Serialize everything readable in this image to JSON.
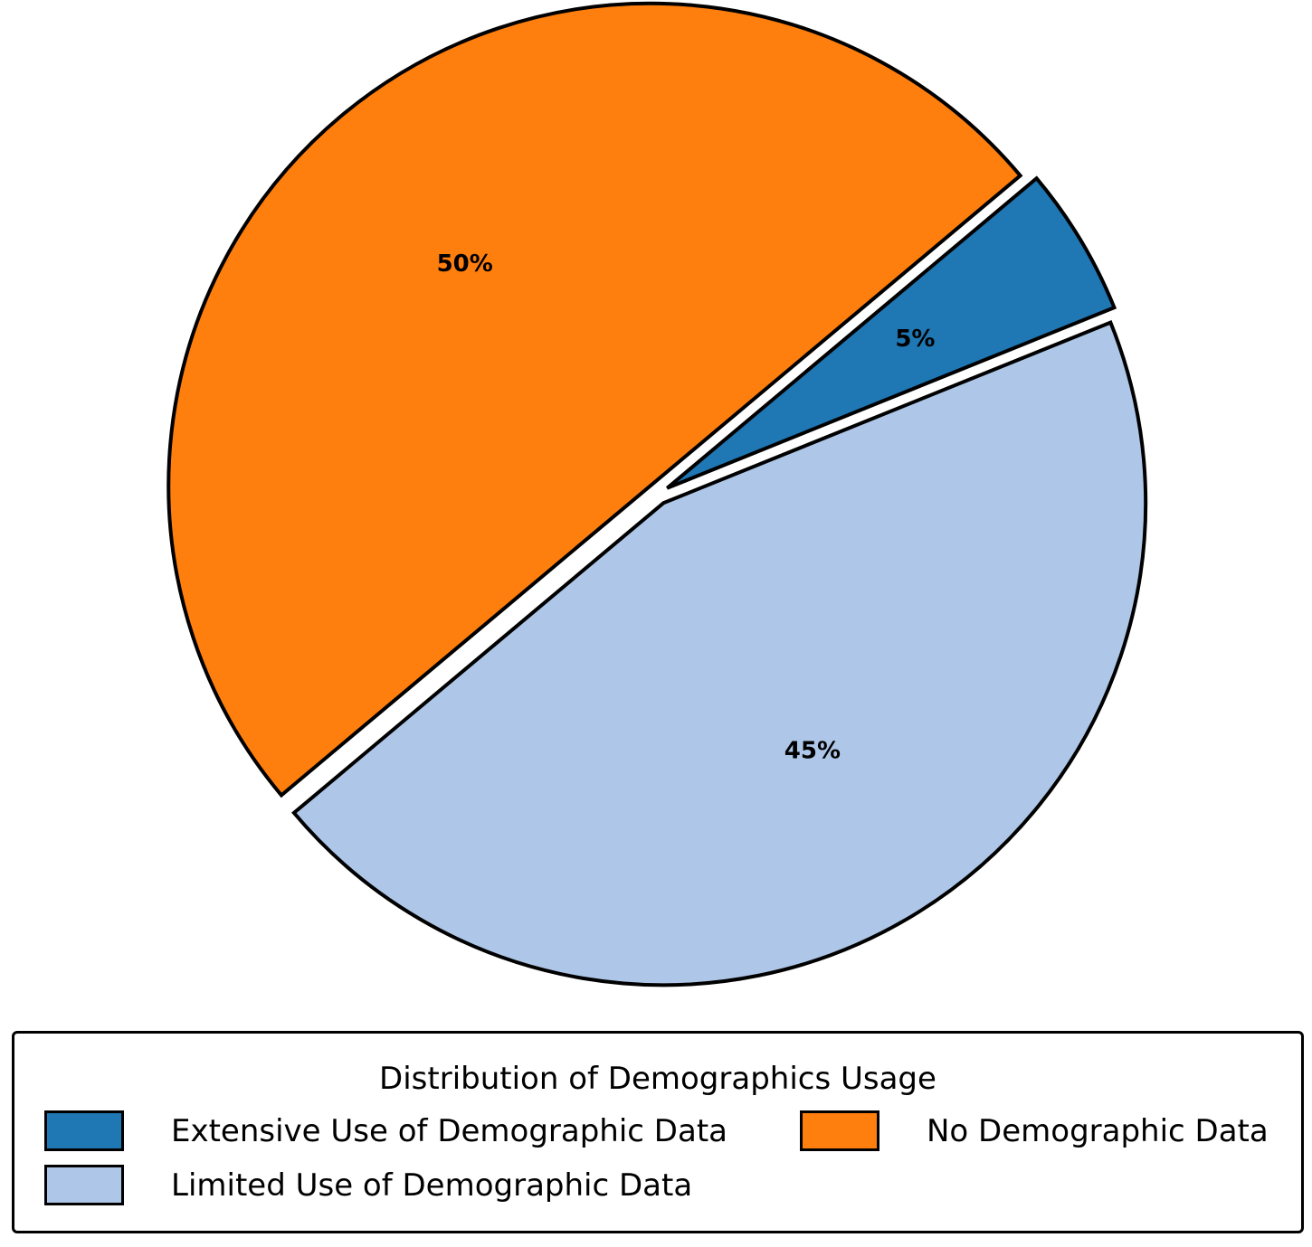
{
  "chart_data": {
    "type": "pie",
    "title": "",
    "categories": [
      "Extensive Use of Demographic Data",
      "No Demographic Data",
      "Limited Use of Demographic Data"
    ],
    "values": [
      5,
      50,
      45
    ],
    "labels": [
      "5%",
      "50%",
      "45%"
    ],
    "colors": [
      "#1f77b4",
      "#ff7f0e",
      "#aec7e8"
    ],
    "legend": {
      "title": "Distribution of Demographics Usage",
      "placement": "bottom",
      "columns": 2
    }
  }
}
